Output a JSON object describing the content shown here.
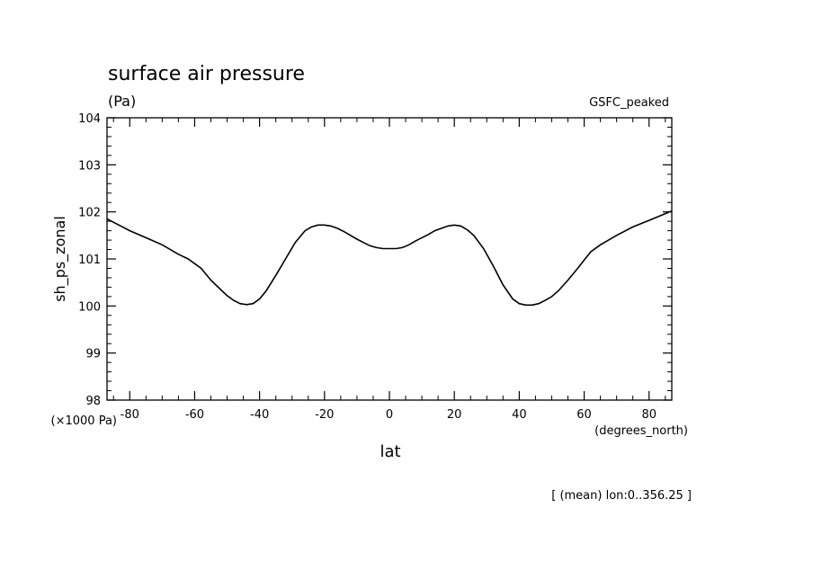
{
  "chart_data": {
    "type": "line",
    "title": "surface air pressure",
    "units": "(Pa)",
    "label_top_right": "GSFC_peaked",
    "xlabel": "lat",
    "x_units": "(degrees_north)",
    "ylabel": "sh_ps_zonal",
    "y_scale_note": "(×1000 Pa)",
    "footer_note": "[ (mean) lon:0..356.25 ]",
    "xlim": [
      -87,
      87
    ],
    "ylim": [
      98,
      104
    ],
    "x_ticks": [
      -80,
      -60,
      -40,
      -20,
      0,
      20,
      40,
      60,
      80
    ],
    "y_ticks": [
      98,
      99,
      100,
      101,
      102,
      103,
      104
    ],
    "series": [
      {
        "x": [
          -87,
          -80,
          -75,
          -70,
          -65,
          -62,
          -58,
          -55,
          -52,
          -50,
          -48,
          -46,
          -44,
          -42,
          -40,
          -38,
          -35,
          -32,
          -29,
          -26,
          -24,
          -22,
          -20,
          -18,
          -16,
          -14,
          -12,
          -10,
          -8,
          -6,
          -4,
          -2,
          0,
          2,
          4,
          6,
          8,
          10,
          12,
          14,
          16,
          18,
          20,
          22,
          24,
          26,
          29,
          32,
          35,
          38,
          40,
          42,
          44,
          46,
          48,
          50,
          52,
          55,
          58,
          62,
          65,
          70,
          75,
          80,
          87
        ],
        "y": [
          101.85,
          101.6,
          101.45,
          101.3,
          101.1,
          101.0,
          100.8,
          100.55,
          100.35,
          100.22,
          100.12,
          100.05,
          100.03,
          100.05,
          100.15,
          100.32,
          100.65,
          101.0,
          101.35,
          101.6,
          101.68,
          101.72,
          101.72,
          101.7,
          101.65,
          101.58,
          101.5,
          101.42,
          101.35,
          101.28,
          101.24,
          101.22,
          101.22,
          101.22,
          101.24,
          101.3,
          101.38,
          101.45,
          101.52,
          101.6,
          101.65,
          101.7,
          101.72,
          101.7,
          101.62,
          101.5,
          101.22,
          100.85,
          100.45,
          100.15,
          100.05,
          100.02,
          100.02,
          100.05,
          100.12,
          100.2,
          100.32,
          100.55,
          100.8,
          101.15,
          101.3,
          101.5,
          101.68,
          101.82,
          102.02
        ]
      }
    ]
  }
}
